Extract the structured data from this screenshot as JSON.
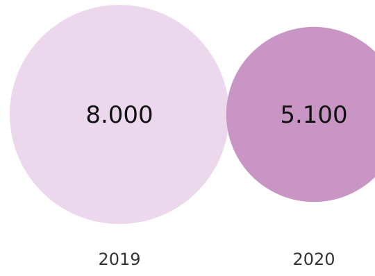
{
  "chart_data": {
    "type": "bubble",
    "title": "",
    "categories": [
      "2019",
      "2020"
    ],
    "values": [
      8000,
      5100
    ],
    "value_labels": [
      "8.000",
      "5.100"
    ],
    "colors": [
      "#ecd8ec",
      "#c895c4"
    ],
    "legend": "none",
    "grid": false
  }
}
